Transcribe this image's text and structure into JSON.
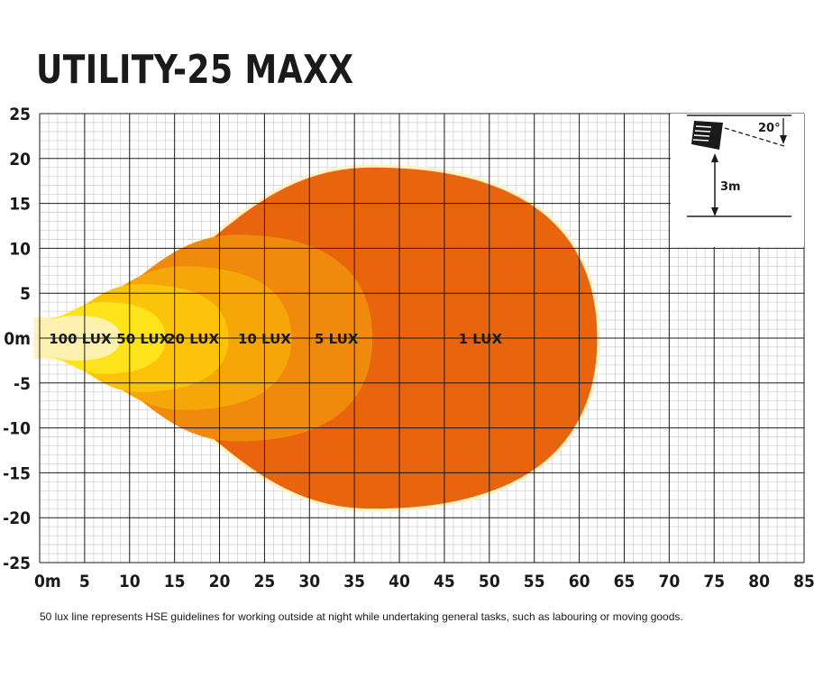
{
  "title": "UTILITY-25 MAXX",
  "footnote": "50 lux line represents HSE guidelines for working outside at night while undertaking general tasks, such as labouring or moving goods.",
  "colors": {
    "grid_minor": "#d2d2d2",
    "grid_major": "#1a1a1a",
    "zone_1": "#e8650e",
    "zone_5": "#f08a0c",
    "zone_10": "#f5a70a",
    "zone_20": "#fbc40a",
    "zone_50": "#fde31a",
    "zone_100": "#fdf1b0",
    "halo": "#fff2c8"
  },
  "chart_data": {
    "type": "area",
    "title": "UTILITY-25 MAXX",
    "xlim": [
      0,
      85
    ],
    "ylim": [
      -25,
      25
    ],
    "x_ticks": [
      "0m",
      "5",
      "10",
      "15",
      "20",
      "25",
      "30",
      "35",
      "40",
      "45",
      "50",
      "55",
      "60",
      "65",
      "70",
      "75",
      "80",
      "85"
    ],
    "y_ticks": [
      "25",
      "20",
      "15",
      "10",
      "5",
      "0m",
      "-5",
      "-10",
      "-15",
      "-20",
      "-25"
    ],
    "grid": true,
    "series": [
      {
        "name": "1 LUX",
        "label_x": 49,
        "reach": 62,
        "half_width": 19,
        "peak_x": 37
      },
      {
        "name": "5 LUX",
        "label_x": 33,
        "reach": 37,
        "half_width": 11.5,
        "peak_x": 22
      },
      {
        "name": "10 LUX",
        "label_x": 25,
        "reach": 28,
        "half_width": 8,
        "peak_x": 16
      },
      {
        "name": "20 LUX",
        "label_x": 17,
        "reach": 21,
        "half_width": 6,
        "peak_x": 11
      },
      {
        "name": "50 LUX",
        "label_x": 11.5,
        "reach": 14,
        "half_width": 4,
        "peak_x": 7
      },
      {
        "name": "100 LUX",
        "label_x": 4.5,
        "reach": 9,
        "half_width": 2.5,
        "peak_x": 4
      }
    ],
    "inset": {
      "angle_label": "20°",
      "height_label": "3m"
    }
  }
}
